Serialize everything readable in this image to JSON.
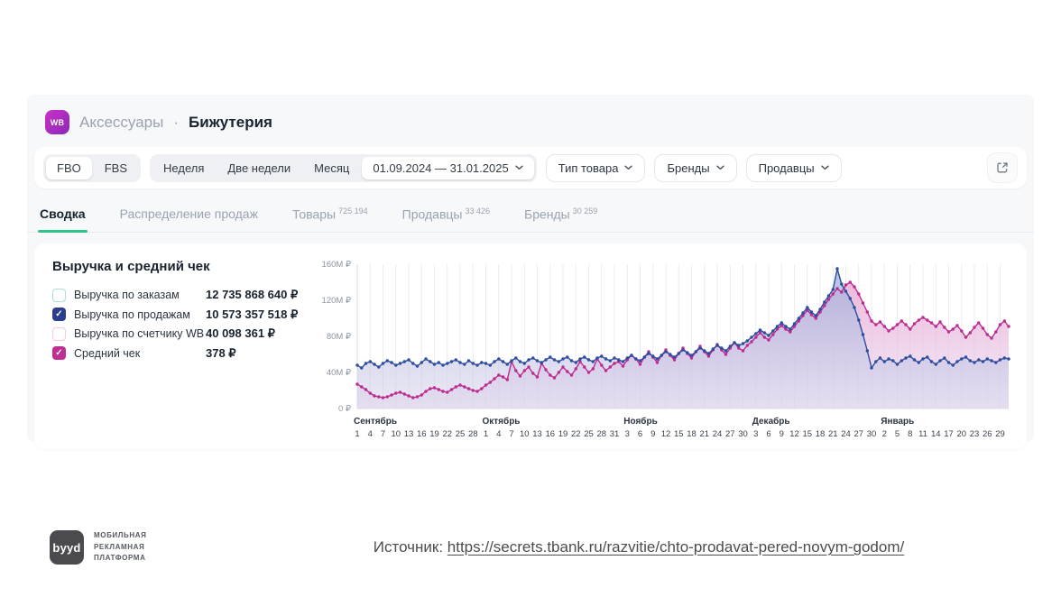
{
  "header": {
    "app_badge": "WB",
    "category": "Аксессуары",
    "separator": "·",
    "subcategory": "Бижутерия"
  },
  "filters": {
    "fulfillment": {
      "options": [
        "FBO",
        "FBS"
      ],
      "selected": "FBO"
    },
    "period": {
      "options": [
        "Неделя",
        "Две недели",
        "Месяц"
      ],
      "selected_range": "01.09.2024 — 31.01.2025"
    },
    "dropdowns": [
      {
        "label": "Тип товара"
      },
      {
        "label": "Бренды"
      },
      {
        "label": "Продавцы"
      }
    ],
    "export_icon": "share-export-icon"
  },
  "tabs": [
    {
      "label": "Сводка",
      "count": "",
      "active": true
    },
    {
      "label": "Распределение продаж",
      "count": "",
      "active": false
    },
    {
      "label": "Товары",
      "count": "725 194",
      "active": false
    },
    {
      "label": "Продавцы",
      "count": "33 426",
      "active": false
    },
    {
      "label": "Бренды",
      "count": "30 259",
      "active": false
    }
  ],
  "legend": {
    "title": "Выручка и средний чек",
    "items": [
      {
        "label": "Выручка по заказам",
        "value": "12 735 868 640 ₽",
        "checked": false,
        "color": "#a7e2c9"
      },
      {
        "label": "Выручка по продажам",
        "value": "10 573 357 518 ₽",
        "checked": true,
        "color": "#2b3d8c"
      },
      {
        "label": "Выручка по счетчику WB",
        "value": "40 098 361 ₽",
        "checked": false,
        "color": "#f6c8db"
      },
      {
        "label": "Средний чек",
        "value": "378 ₽",
        "checked": true,
        "color": "#bf2e92"
      }
    ]
  },
  "chart_data": {
    "type": "line",
    "title": "Выручка и средний чек",
    "ylabel": "₽",
    "ylim": [
      0,
      160
    ],
    "y_ticks": [
      "0 ₽",
      "40M ₽",
      "80M ₽",
      "120M ₽",
      "160M ₽"
    ],
    "grid": "vertical",
    "legend_position": "left",
    "months": [
      {
        "name": "Сентябрь",
        "start_index": 0,
        "tick_days": [
          1,
          4,
          7,
          10,
          13,
          16,
          19,
          22,
          25,
          28
        ]
      },
      {
        "name": "Октябрь",
        "start_index": 30,
        "tick_days": [
          1,
          4,
          7,
          10,
          13,
          16,
          19,
          22,
          25,
          28,
          31
        ]
      },
      {
        "name": "Ноябрь",
        "start_index": 61,
        "tick_days": [
          3,
          6,
          9,
          12,
          15,
          18,
          21,
          24,
          27,
          30
        ]
      },
      {
        "name": "Декабрь",
        "start_index": 91,
        "tick_days": [
          3,
          6,
          9,
          12,
          15,
          18,
          21,
          24,
          27,
          30
        ]
      },
      {
        "name": "Январь",
        "start_index": 122,
        "tick_days": [
          2,
          5,
          8,
          11,
          14,
          17,
          20,
          23,
          26,
          29
        ]
      }
    ],
    "series": [
      {
        "name": "Выручка по продажам",
        "color": "#2d4da1",
        "fill_top": "#9fb0dc",
        "fill_bottom": "#d8d2ea",
        "values": [
          48,
          45,
          50,
          52,
          49,
          46,
          50,
          53,
          51,
          48,
          50,
          52,
          54,
          50,
          47,
          51,
          55,
          52,
          49,
          51,
          48,
          50,
          52,
          54,
          51,
          49,
          53,
          50,
          48,
          51,
          50,
          48,
          52,
          55,
          52,
          49,
          53,
          56,
          52,
          50,
          54,
          56,
          53,
          51,
          54,
          57,
          54,
          52,
          55,
          57,
          53,
          51,
          55,
          57,
          54,
          52,
          56,
          58,
          55,
          53,
          56,
          54,
          52,
          56,
          59,
          55,
          53,
          57,
          61,
          58,
          55,
          59,
          63,
          60,
          57,
          61,
          65,
          62,
          59,
          63,
          67,
          64,
          61,
          66,
          70,
          67,
          64,
          69,
          73,
          70,
          72,
          75,
          79,
          83,
          87,
          84,
          81,
          86,
          91,
          95,
          91,
          88,
          94,
          100,
          106,
          112,
          107,
          103,
          110,
          118,
          125,
          132,
          155,
          138,
          130,
          122,
          112,
          98,
          82,
          64,
          45,
          52,
          56,
          52,
          55,
          53,
          49,
          53,
          56,
          58,
          54,
          51,
          55,
          57,
          52,
          49,
          53,
          56,
          51,
          48,
          52,
          55,
          57,
          53,
          51,
          54,
          52,
          55,
          53,
          51,
          54,
          56,
          55
        ]
      },
      {
        "name": "Средний чек",
        "color": "#bd2b8f",
        "fill_top": "#eaa6d2",
        "fill_bottom": "#e4d5ef",
        "values": [
          27,
          24,
          21,
          17,
          14,
          13,
          12,
          13,
          15,
          17,
          18,
          16,
          14,
          12,
          13,
          15,
          19,
          22,
          23,
          21,
          19,
          18,
          21,
          24,
          26,
          24,
          22,
          20,
          19,
          22,
          26,
          29,
          33,
          37,
          35,
          32,
          52,
          42,
          36,
          42,
          46,
          39,
          35,
          50,
          43,
          37,
          34,
          40,
          46,
          41,
          37,
          44,
          52,
          46,
          40,
          44,
          55,
          48,
          42,
          46,
          50,
          52,
          47,
          54,
          59,
          55,
          49,
          57,
          63,
          57,
          51,
          59,
          65,
          59,
          54,
          61,
          67,
          61,
          56,
          63,
          69,
          63,
          58,
          65,
          71,
          65,
          60,
          67,
          73,
          67,
          64,
          70,
          74,
          79,
          84,
          79,
          76,
          82,
          88,
          92,
          88,
          85,
          91,
          97,
          103,
          109,
          104,
          100,
          107,
          114,
          121,
          127,
          133,
          129,
          137,
          140,
          135,
          127,
          117,
          107,
          97,
          93,
          96,
          91,
          86,
          89,
          93,
          97,
          93,
          88,
          94,
          98,
          101,
          98,
          95,
          91,
          96,
          90,
          85,
          88,
          92,
          86,
          79,
          84,
          90,
          95,
          89,
          82,
          78,
          85,
          93,
          97,
          91
        ]
      }
    ]
  },
  "footer": {
    "logo_text": "byyd",
    "tagline_lines": [
      "МОБИЛЬНАЯ",
      "РЕКЛАМНАЯ",
      "ПЛАТФОРМА"
    ],
    "source_label": "Источник:",
    "source_url": "https://secrets.tbank.ru/razvitie/chto-prodavat-pered-novym-godom/"
  }
}
